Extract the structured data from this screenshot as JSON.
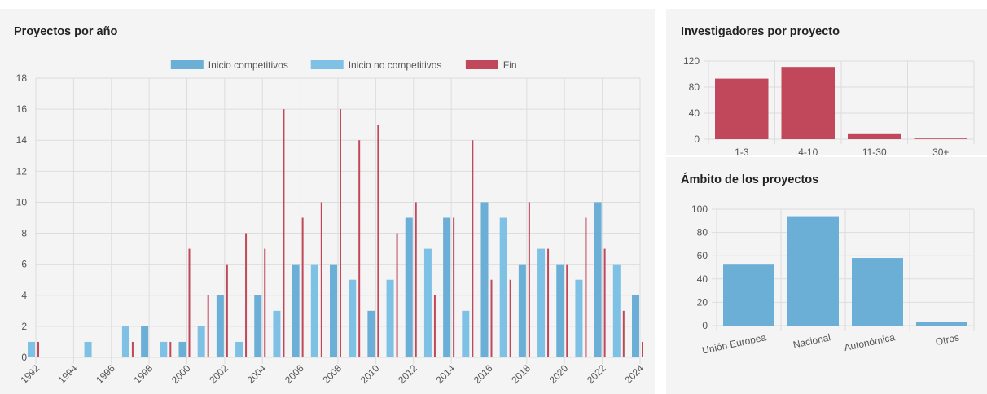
{
  "panels": {
    "years": {
      "title": "Proyectos por año"
    },
    "investigators": {
      "title": "Investigadores por proyecto"
    },
    "scope": {
      "title": "Ámbito de los proyectos"
    }
  },
  "colors": {
    "competitive": "#6baed6",
    "non_competitive": "#7fc1e4",
    "end": "#c0485a",
    "investigators_bar": "#c0485a",
    "scope_bar": "#6baed6",
    "grid": "#dddddd"
  },
  "chart_data": [
    {
      "id": "years",
      "type": "bar",
      "title": "Proyectos por año",
      "categories": [
        "1992",
        "1993",
        "1994",
        "1995",
        "1996",
        "1997",
        "1998",
        "1999",
        "2000",
        "2001",
        "2002",
        "2003",
        "2004",
        "2005",
        "2006",
        "2007",
        "2008",
        "2009",
        "2010",
        "2011",
        "2012",
        "2013",
        "2014",
        "2015",
        "2016",
        "2017",
        "2018",
        "2019",
        "2020",
        "2021",
        "2022",
        "2023",
        "2024"
      ],
      "tick_labels": [
        "1992",
        "1994",
        "1996",
        "1998",
        "2000",
        "2002",
        "2004",
        "2006",
        "2008",
        "2010",
        "2012",
        "2014",
        "2016",
        "2018",
        "2020",
        "2022",
        "2024"
      ],
      "series": [
        {
          "name": "Inicio competitivos",
          "values": [
            0,
            0,
            0,
            0,
            0,
            0,
            2,
            0,
            1,
            0,
            4,
            0,
            4,
            0,
            6,
            0,
            6,
            0,
            3,
            0,
            9,
            0,
            9,
            0,
            10,
            0,
            6,
            0,
            6,
            0,
            10,
            0,
            4
          ]
        },
        {
          "name": "Inicio no competitivos",
          "values": [
            1,
            0,
            0,
            1,
            0,
            2,
            0,
            1,
            0,
            2,
            0,
            1,
            0,
            3,
            0,
            6,
            0,
            5,
            0,
            5,
            0,
            7,
            0,
            3,
            0,
            9,
            0,
            7,
            0,
            5,
            0,
            6,
            0
          ]
        },
        {
          "name": "Fin",
          "values": [
            1,
            0,
            0,
            0,
            0,
            1,
            0,
            1,
            7,
            4,
            6,
            8,
            7,
            16,
            9,
            10,
            16,
            14,
            15,
            8,
            10,
            4,
            9,
            14,
            5,
            5,
            10,
            7,
            6,
            9,
            7,
            3,
            1
          ]
        }
      ],
      "ylim": [
        0,
        18
      ],
      "yticks": [
        0,
        2,
        4,
        6,
        8,
        10,
        12,
        14,
        16,
        18
      ],
      "legend": "top-center",
      "grid": true
    },
    {
      "id": "investigators",
      "type": "bar",
      "title": "Investigadores por proyecto",
      "categories": [
        "1-3",
        "4-10",
        "11-30",
        "30+"
      ],
      "values": [
        93,
        111,
        9,
        1
      ],
      "ylim": [
        0,
        120
      ],
      "yticks": [
        0,
        40,
        80,
        120
      ],
      "grid": true
    },
    {
      "id": "scope",
      "type": "bar",
      "title": "Ámbito de los proyectos",
      "categories": [
        "Unión Europea",
        "Nacional",
        "Autonómica",
        "Otros"
      ],
      "values": [
        53,
        94,
        58,
        3
      ],
      "ylim": [
        0,
        100
      ],
      "yticks": [
        0,
        20,
        40,
        60,
        80,
        100
      ],
      "grid": true
    }
  ]
}
